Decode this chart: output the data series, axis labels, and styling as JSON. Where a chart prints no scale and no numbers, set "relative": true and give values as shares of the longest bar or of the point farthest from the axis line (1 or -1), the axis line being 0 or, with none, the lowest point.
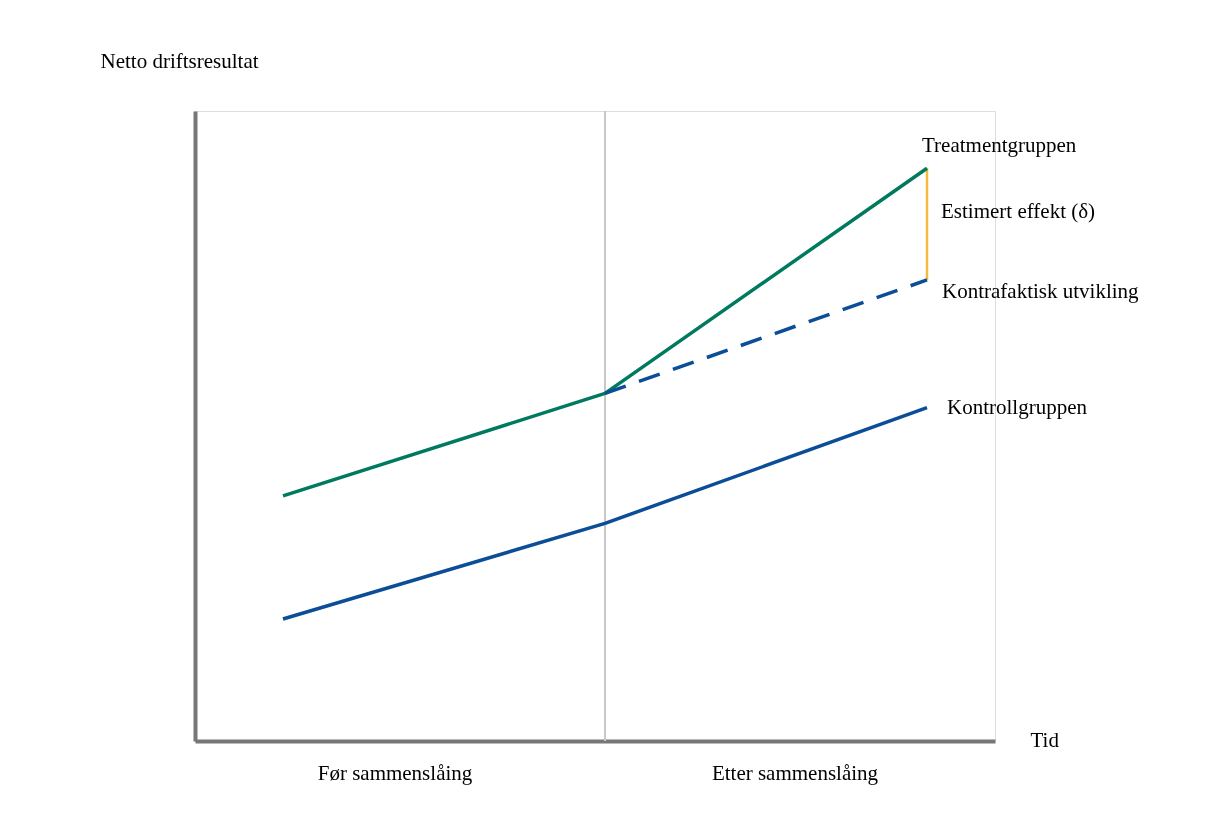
{
  "chart_data": {
    "type": "line",
    "relative": true,
    "xlabel": "Tid",
    "ylabel": "Netto driftsresultat",
    "categories": [
      null,
      null,
      null
    ],
    "annotations": [
      "Før sammenslåing",
      "Etter sammenslåing",
      "Estimert effekt (δ)"
    ],
    "legend": false,
    "grid": false,
    "series": [
      {
        "name": "Treatmentgruppen",
        "color": "#007a5e",
        "values": [
          0.428,
          0.607,
          1
        ],
        "line_style": "solid"
      },
      {
        "name": "Kontrafaktisk utvikling",
        "color": "#0b4d96",
        "values": [
          null,
          0.607,
          0.805
        ],
        "line_style": "dashed"
      },
      {
        "name": "Kontrollgruppen",
        "color": "#0b4d96",
        "values": [
          0.213,
          0.38,
          0.582
        ],
        "line_style": "solid"
      }
    ]
  }
}
